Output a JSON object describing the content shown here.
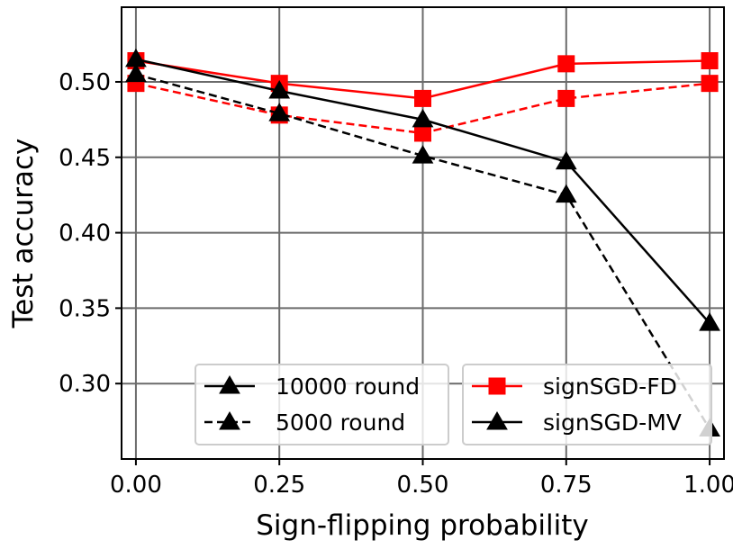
{
  "chart_data": {
    "type": "line",
    "title": "",
    "xlabel": "Sign-flipping probability",
    "ylabel": "Test accuracy",
    "x": [
      0.0,
      0.25,
      0.5,
      0.75,
      1.0
    ],
    "xlim": [
      -0.025,
      1.025
    ],
    "ylim": [
      0.25,
      0.5495
    ],
    "xticks": [
      0.0,
      0.25,
      0.5,
      0.75,
      1.0
    ],
    "xtick_labels": [
      "0.00",
      "0.25",
      "0.50",
      "0.75",
      "1.00"
    ],
    "yticks": [
      0.3,
      0.35,
      0.4,
      0.45,
      0.5
    ],
    "ytick_labels": [
      "0.30",
      "0.35",
      "0.40",
      "0.45",
      "0.50"
    ],
    "grid": true,
    "series": [
      {
        "name": "signSGD-FD (10000 round)",
        "method": "signSGD-FD",
        "rounds": "10000 round",
        "color": "#ff0000",
        "marker": "square",
        "linestyle": "solid",
        "values": [
          0.514,
          0.499,
          0.489,
          0.512,
          0.514
        ]
      },
      {
        "name": "signSGD-FD (5000 round)",
        "method": "signSGD-FD",
        "rounds": "5000 round",
        "color": "#ff0000",
        "marker": "square",
        "linestyle": "dashed",
        "values": [
          0.499,
          0.478,
          0.466,
          0.489,
          0.499
        ]
      },
      {
        "name": "signSGD-MV (10000 round)",
        "method": "signSGD-MV",
        "rounds": "10000 round",
        "color": "#000000",
        "marker": "triangle",
        "linestyle": "solid",
        "values": [
          0.515,
          0.494,
          0.475,
          0.447,
          0.34
        ]
      },
      {
        "name": "signSGD-MV (5000 round)",
        "method": "signSGD-MV",
        "rounds": "5000 round",
        "color": "#000000",
        "marker": "triangle",
        "linestyle": "dashed",
        "values": [
          0.505,
          0.479,
          0.451,
          0.425,
          0.27
        ]
      }
    ],
    "legends": [
      {
        "position": "bottom-left",
        "entries": [
          {
            "label": "10000 round",
            "color": "#000000",
            "marker": "triangle",
            "linestyle": "solid"
          },
          {
            "label": "5000 round",
            "color": "#000000",
            "marker": "triangle",
            "linestyle": "dashed"
          }
        ]
      },
      {
        "position": "bottom-right",
        "entries": [
          {
            "label": "signSGD-FD",
            "color": "#ff0000",
            "marker": "square",
            "linestyle": "solid"
          },
          {
            "label": "signSGD-MV",
            "color": "#000000",
            "marker": "triangle",
            "linestyle": "solid"
          }
        ]
      }
    ]
  }
}
